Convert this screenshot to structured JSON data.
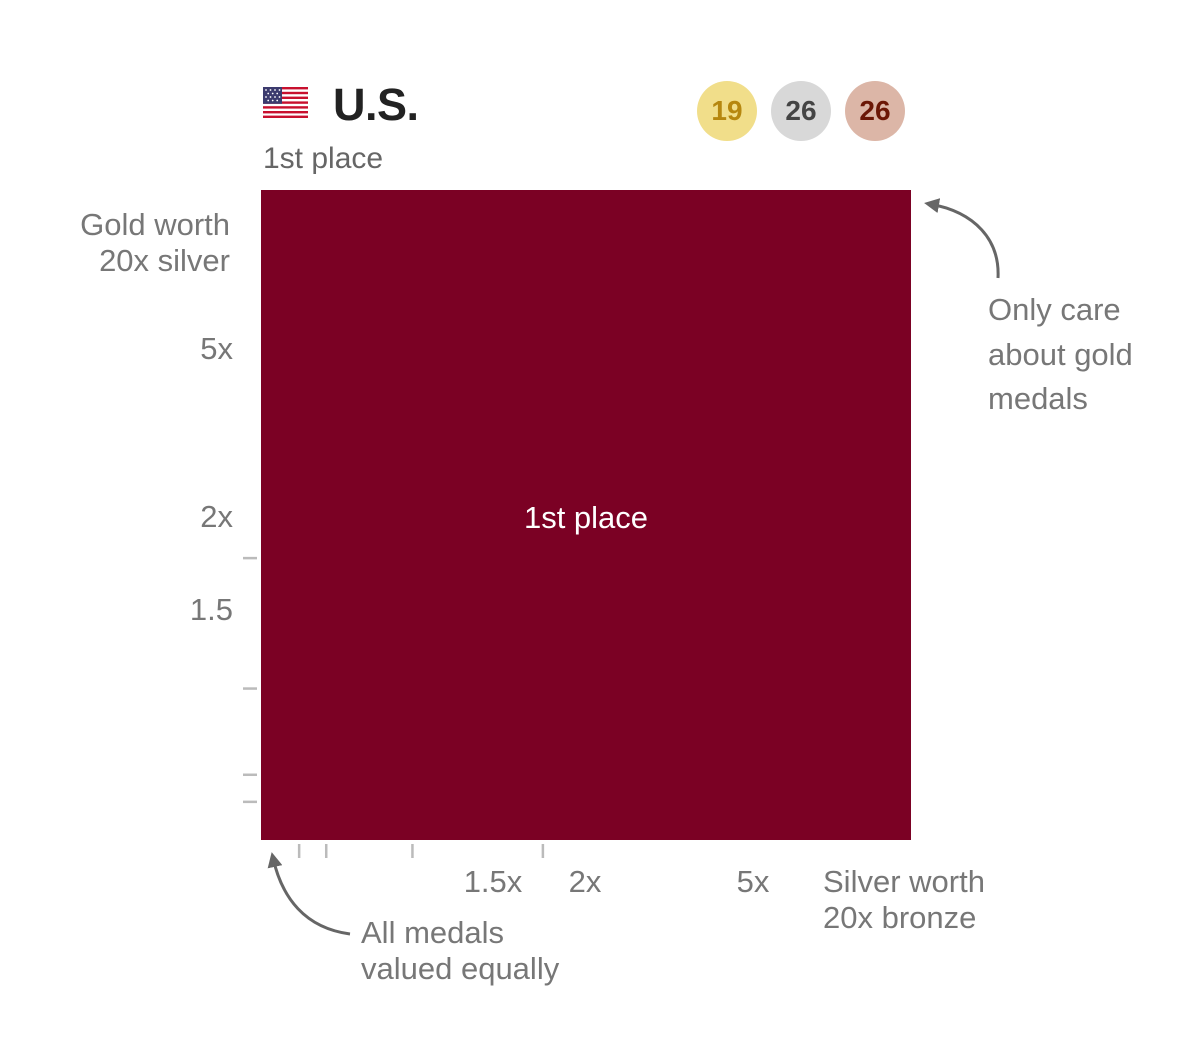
{
  "header": {
    "flag_icon": "us-flag-icon",
    "country": "U.S.",
    "place": "1st place"
  },
  "medals": {
    "gold": {
      "count": "19",
      "bg": "#f1de8a",
      "fg": "#b6870f"
    },
    "silver": {
      "count": "26",
      "bg": "#d8d8d8",
      "fg": "#444444"
    },
    "bronze": {
      "count": "26",
      "bg": "#dcb6a7",
      "fg": "#6b1706"
    }
  },
  "chart_data": {
    "type": "heatmap",
    "title": "",
    "cell_color": "#7b0124",
    "cell_label": "1st place",
    "x_axis": {
      "ticks": [
        {
          "label": "1.5x",
          "value": 1.5
        },
        {
          "label": "2x",
          "value": 2
        },
        {
          "label": "5x",
          "value": 5
        }
      ],
      "end_label_line1": "Silver worth",
      "end_label_line2": "20x bronze",
      "end_value": 20,
      "range": [
        1,
        1000
      ]
    },
    "y_axis": {
      "ticks": [
        {
          "label": "1.5",
          "value": 1.5
        },
        {
          "label": "2x",
          "value": 2
        },
        {
          "label": "5x",
          "value": 5
        }
      ],
      "end_label_line1": "Gold worth",
      "end_label_line2": "20x silver",
      "end_value": 20,
      "range": [
        1,
        1000
      ]
    },
    "annotations": {
      "top_right": [
        "Only care",
        "about gold",
        "medals"
      ],
      "bottom_left": [
        "All medals",
        "valued equally"
      ]
    }
  }
}
